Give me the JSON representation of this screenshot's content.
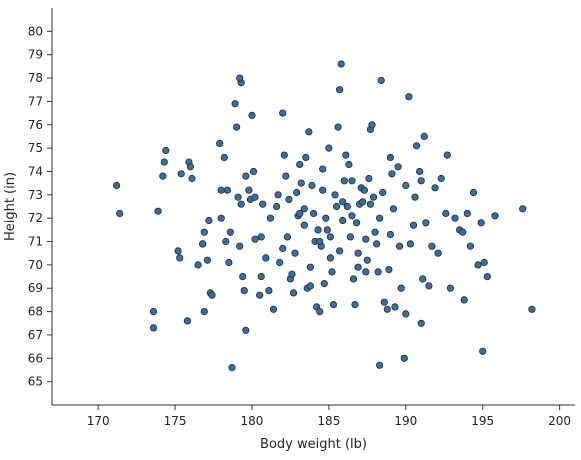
{
  "chart_data": {
    "type": "scatter",
    "title": "",
    "xlabel": "Body weight (lb)",
    "ylabel": "Height (in)",
    "xlim": [
      167,
      201
    ],
    "ylim": [
      64,
      81
    ],
    "xticks": [
      170,
      175,
      180,
      185,
      190,
      195,
      200
    ],
    "yticks": [
      65,
      66,
      67,
      68,
      69,
      70,
      71,
      72,
      73,
      74,
      75,
      76,
      77,
      78,
      79,
      80
    ],
    "grid": false,
    "legend": "none",
    "marker_fill": "#3d6e9c",
    "marker_stroke": "#1e2a36",
    "series": [
      {
        "x": [
          171.2,
          171.4,
          173.6,
          173.6,
          173.9,
          174.2,
          174.4,
          175.2,
          175.3,
          175.8,
          175.9,
          176.0,
          176.5,
          176.8,
          176.9,
          176.9,
          177.1,
          177.3,
          177.4,
          177.9,
          178.0,
          178.2,
          178.3,
          178.4,
          178.6,
          178.9,
          179.0,
          179.1,
          179.2,
          179.3,
          179.3,
          179.4,
          179.5,
          179.6,
          179.8,
          179.9,
          180.0,
          180.1,
          180.2,
          180.5,
          180.6,
          180.9,
          181.1,
          181.2,
          181.4,
          181.6,
          181.8,
          182.0,
          182.1,
          182.2,
          182.3,
          182.5,
          182.6,
          182.7,
          182.9,
          183.0,
          183.1,
          183.2,
          183.4,
          183.4,
          183.6,
          183.7,
          183.8,
          183.9,
          184.0,
          184.1,
          184.2,
          184.3,
          184.4,
          184.5,
          184.6,
          184.7,
          184.8,
          184.9,
          185.0,
          185.1,
          185.2,
          185.3,
          185.4,
          185.5,
          185.6,
          185.7,
          185.8,
          185.9,
          186.0,
          186.1,
          186.2,
          186.3,
          186.4,
          186.5,
          186.6,
          186.7,
          186.8,
          186.9,
          187.0,
          187.1,
          187.2,
          187.3,
          187.4,
          187.5,
          187.6,
          187.7,
          187.8,
          187.9,
          188.0,
          188.1,
          188.2,
          188.3,
          188.4,
          188.5,
          188.6,
          188.8,
          189.0,
          189.1,
          189.2,
          189.3,
          189.5,
          189.7,
          189.9,
          190.0,
          190.2,
          190.3,
          190.5,
          190.7,
          190.9,
          191.0,
          191.1,
          191.2,
          191.3,
          191.5,
          191.7,
          191.9,
          192.1,
          192.3,
          192.6,
          192.9,
          193.2,
          193.5,
          193.8,
          194.0,
          194.2,
          194.4,
          194.7,
          194.9,
          195.1,
          195.3,
          195.8,
          197.6,
          198.2,
          185.7,
          188.3,
          190.0,
          179.2,
          178.7,
          176.8,
          180.6,
          182.4,
          184.6,
          186.9,
          189.0,
          181.7,
          183.5,
          187.4,
          185.1,
          179.6,
          177.2,
          176.1,
          174.3,
          188.9,
          191.0,
          182.8,
          183.1,
          186.5,
          190.6,
          187.7,
          184.4,
          180.7,
          178.5,
          175.4,
          195.0,
          193.7,
          192.7,
          189.6,
          185.9,
          183.8,
          182.0,
          180.2,
          178.0
        ],
        "y": [
          73.4,
          72.2,
          68.0,
          67.3,
          72.3,
          73.8,
          74.9,
          70.6,
          70.3,
          67.6,
          74.4,
          74.2,
          70.0,
          70.9,
          71.4,
          68.0,
          70.2,
          68.8,
          68.7,
          75.2,
          72.0,
          74.6,
          71.0,
          73.2,
          71.4,
          76.9,
          75.9,
          72.9,
          70.8,
          77.8,
          72.6,
          69.5,
          68.9,
          67.2,
          73.2,
          72.8,
          76.4,
          74.0,
          72.9,
          68.7,
          69.5,
          70.3,
          68.9,
          72.0,
          68.1,
          72.5,
          70.1,
          76.5,
          74.7,
          73.8,
          71.2,
          69.4,
          69.6,
          68.8,
          73.1,
          72.1,
          74.3,
          73.5,
          71.7,
          72.4,
          69.0,
          75.7,
          69.1,
          73.4,
          72.2,
          71.0,
          68.2,
          71.5,
          68.0,
          70.8,
          73.2,
          69.2,
          72.0,
          71.5,
          75.0,
          71.2,
          69.7,
          68.3,
          73.0,
          72.5,
          75.9,
          70.6,
          78.6,
          71.9,
          73.6,
          74.7,
          72.5,
          74.3,
          71.2,
          72.1,
          69.4,
          68.3,
          71.8,
          70.5,
          72.6,
          73.3,
          72.7,
          73.2,
          71.1,
          70.2,
          73.7,
          75.8,
          76.0,
          72.9,
          71.4,
          70.9,
          69.7,
          72.0,
          77.9,
          73.1,
          68.4,
          68.1,
          74.6,
          73.9,
          72.4,
          68.2,
          74.2,
          69.0,
          66.0,
          73.4,
          77.2,
          70.9,
          71.7,
          75.1,
          74.0,
          73.6,
          69.4,
          75.5,
          71.8,
          69.1,
          70.8,
          73.3,
          70.5,
          73.7,
          72.2,
          69.0,
          72.0,
          71.5,
          68.5,
          72.2,
          70.8,
          73.1,
          70.0,
          71.8,
          70.1,
          69.5,
          72.1,
          72.4,
          68.1,
          77.5,
          65.7,
          67.9,
          78.0,
          65.6,
          70.9,
          71.2,
          72.8,
          74.1,
          69.9,
          71.3,
          73.0,
          74.6,
          69.7,
          70.3,
          73.8,
          71.9,
          73.7,
          74.4,
          69.8,
          67.5,
          70.5,
          72.2,
          73.6,
          72.9,
          72.6,
          71.0,
          72.6,
          70.1,
          73.9,
          66.3,
          71.4,
          74.7,
          70.8,
          72.7,
          69.9,
          70.7,
          71.1,
          73.2
        ]
      }
    ]
  }
}
